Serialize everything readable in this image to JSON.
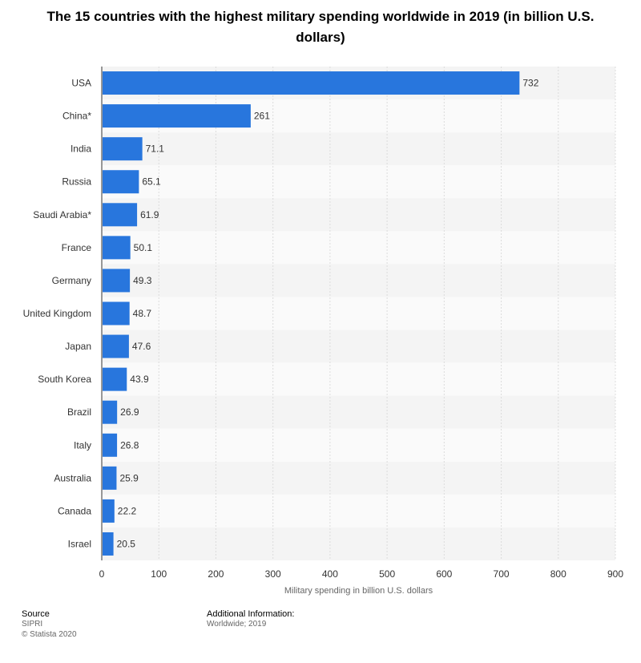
{
  "title": "The 15 countries with the highest military spending worldwide in 2019 (in billion U.S. dollars)",
  "chart_data": {
    "type": "bar",
    "orientation": "horizontal",
    "categories": [
      "USA",
      "China*",
      "India",
      "Russia",
      "Saudi Arabia*",
      "France",
      "Germany",
      "United Kingdom",
      "Japan",
      "South Korea",
      "Brazil",
      "Italy",
      "Australia",
      "Canada",
      "Israel"
    ],
    "values": [
      732,
      261,
      71.1,
      65.1,
      61.9,
      50.1,
      49.3,
      48.7,
      47.6,
      43.9,
      26.9,
      26.8,
      25.9,
      22.2,
      20.5
    ],
    "value_labels": [
      "732",
      "261",
      "71.1",
      "65.1",
      "61.9",
      "50.1",
      "49.3",
      "48.7",
      "47.6",
      "43.9",
      "26.9",
      "26.8",
      "25.9",
      "22.2",
      "20.5"
    ],
    "xlabel": "Military spending in billion U.S. dollars",
    "ylabel": "",
    "xlim": [
      0,
      900
    ],
    "ticks": [
      "0",
      "100",
      "200",
      "300",
      "400",
      "500",
      "600",
      "700",
      "800",
      "900"
    ],
    "grid": true,
    "bar_color": "#2876dd"
  },
  "footer": {
    "source_heading": "Source",
    "source_name": "SIPRI",
    "copyright": "© Statista 2020",
    "info_heading": "Additional Information:",
    "info_text": "Worldwide; 2019"
  }
}
